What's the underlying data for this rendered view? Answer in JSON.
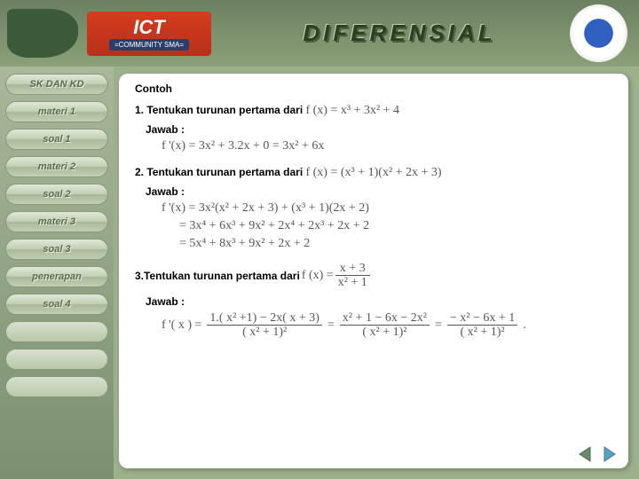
{
  "banner": {
    "ict_label": "ICT",
    "ict_sub": "=COMMUNITY SMA=",
    "title": "DIFERENSIAL"
  },
  "sidebar": {
    "items": [
      {
        "label": "SK DAN KD",
        "blank": false
      },
      {
        "label": "materi 1",
        "blank": false
      },
      {
        "label": "soal 1",
        "blank": false
      },
      {
        "label": "materi 2",
        "blank": false
      },
      {
        "label": "soal 2",
        "blank": false
      },
      {
        "label": "materi 3",
        "blank": false
      },
      {
        "label": "soal 3",
        "blank": false
      },
      {
        "label": "penerapan",
        "blank": false
      },
      {
        "label": "soal 4",
        "blank": false
      },
      {
        "label": "",
        "blank": true
      },
      {
        "label": "",
        "blank": true
      },
      {
        "label": "",
        "blank": true
      }
    ]
  },
  "content": {
    "heading": "Contoh",
    "p1": {
      "text": "1. Tentukan turunan pertama dari ",
      "func": "f (x) = x³ + 3x² + 4",
      "answer": "Jawab :",
      "sol": "f '(x) = 3x² + 3.2x + 0  = 3x² + 6x"
    },
    "p2": {
      "text": "2. Tentukan turunan pertama dari ",
      "func": "f (x) = (x³ + 1)(x² + 2x + 3)",
      "answer": "Jawab :",
      "line1": "f '(x) = 3x²(x² + 2x + 3) + (x³ + 1)(2x + 2)",
      "line2": "= 3x⁴ + 6x³ + 9x² + 2x⁴ + 2x³ + 2x + 2",
      "line3": "= 5x⁴ + 8x³ + 9x² + 2x + 2"
    },
    "p3": {
      "text": "3.Tentukan turunan pertama dari  ",
      "func_lhs": "f (x) = ",
      "func_num": "x + 3",
      "func_den": "x² + 1",
      "answer": "Jawab :",
      "sol_lhs": "f '( x ) = ",
      "f1_num": "1.( x² +1) − 2x( x + 3)",
      "f1_den": "( x² + 1)²",
      "f2_num": "x² + 1 − 6x − 2x²",
      "f2_den": "( x² + 1)²",
      "f3_num": "− x² − 6x + 1",
      "f3_den": "( x² + 1)²"
    }
  },
  "colors": {
    "bg": "#9cb08c",
    "panel": "#ffffff",
    "math": "#555555",
    "arrow_prev": "#6a8a6a",
    "arrow_next": "#5aa0c0"
  }
}
